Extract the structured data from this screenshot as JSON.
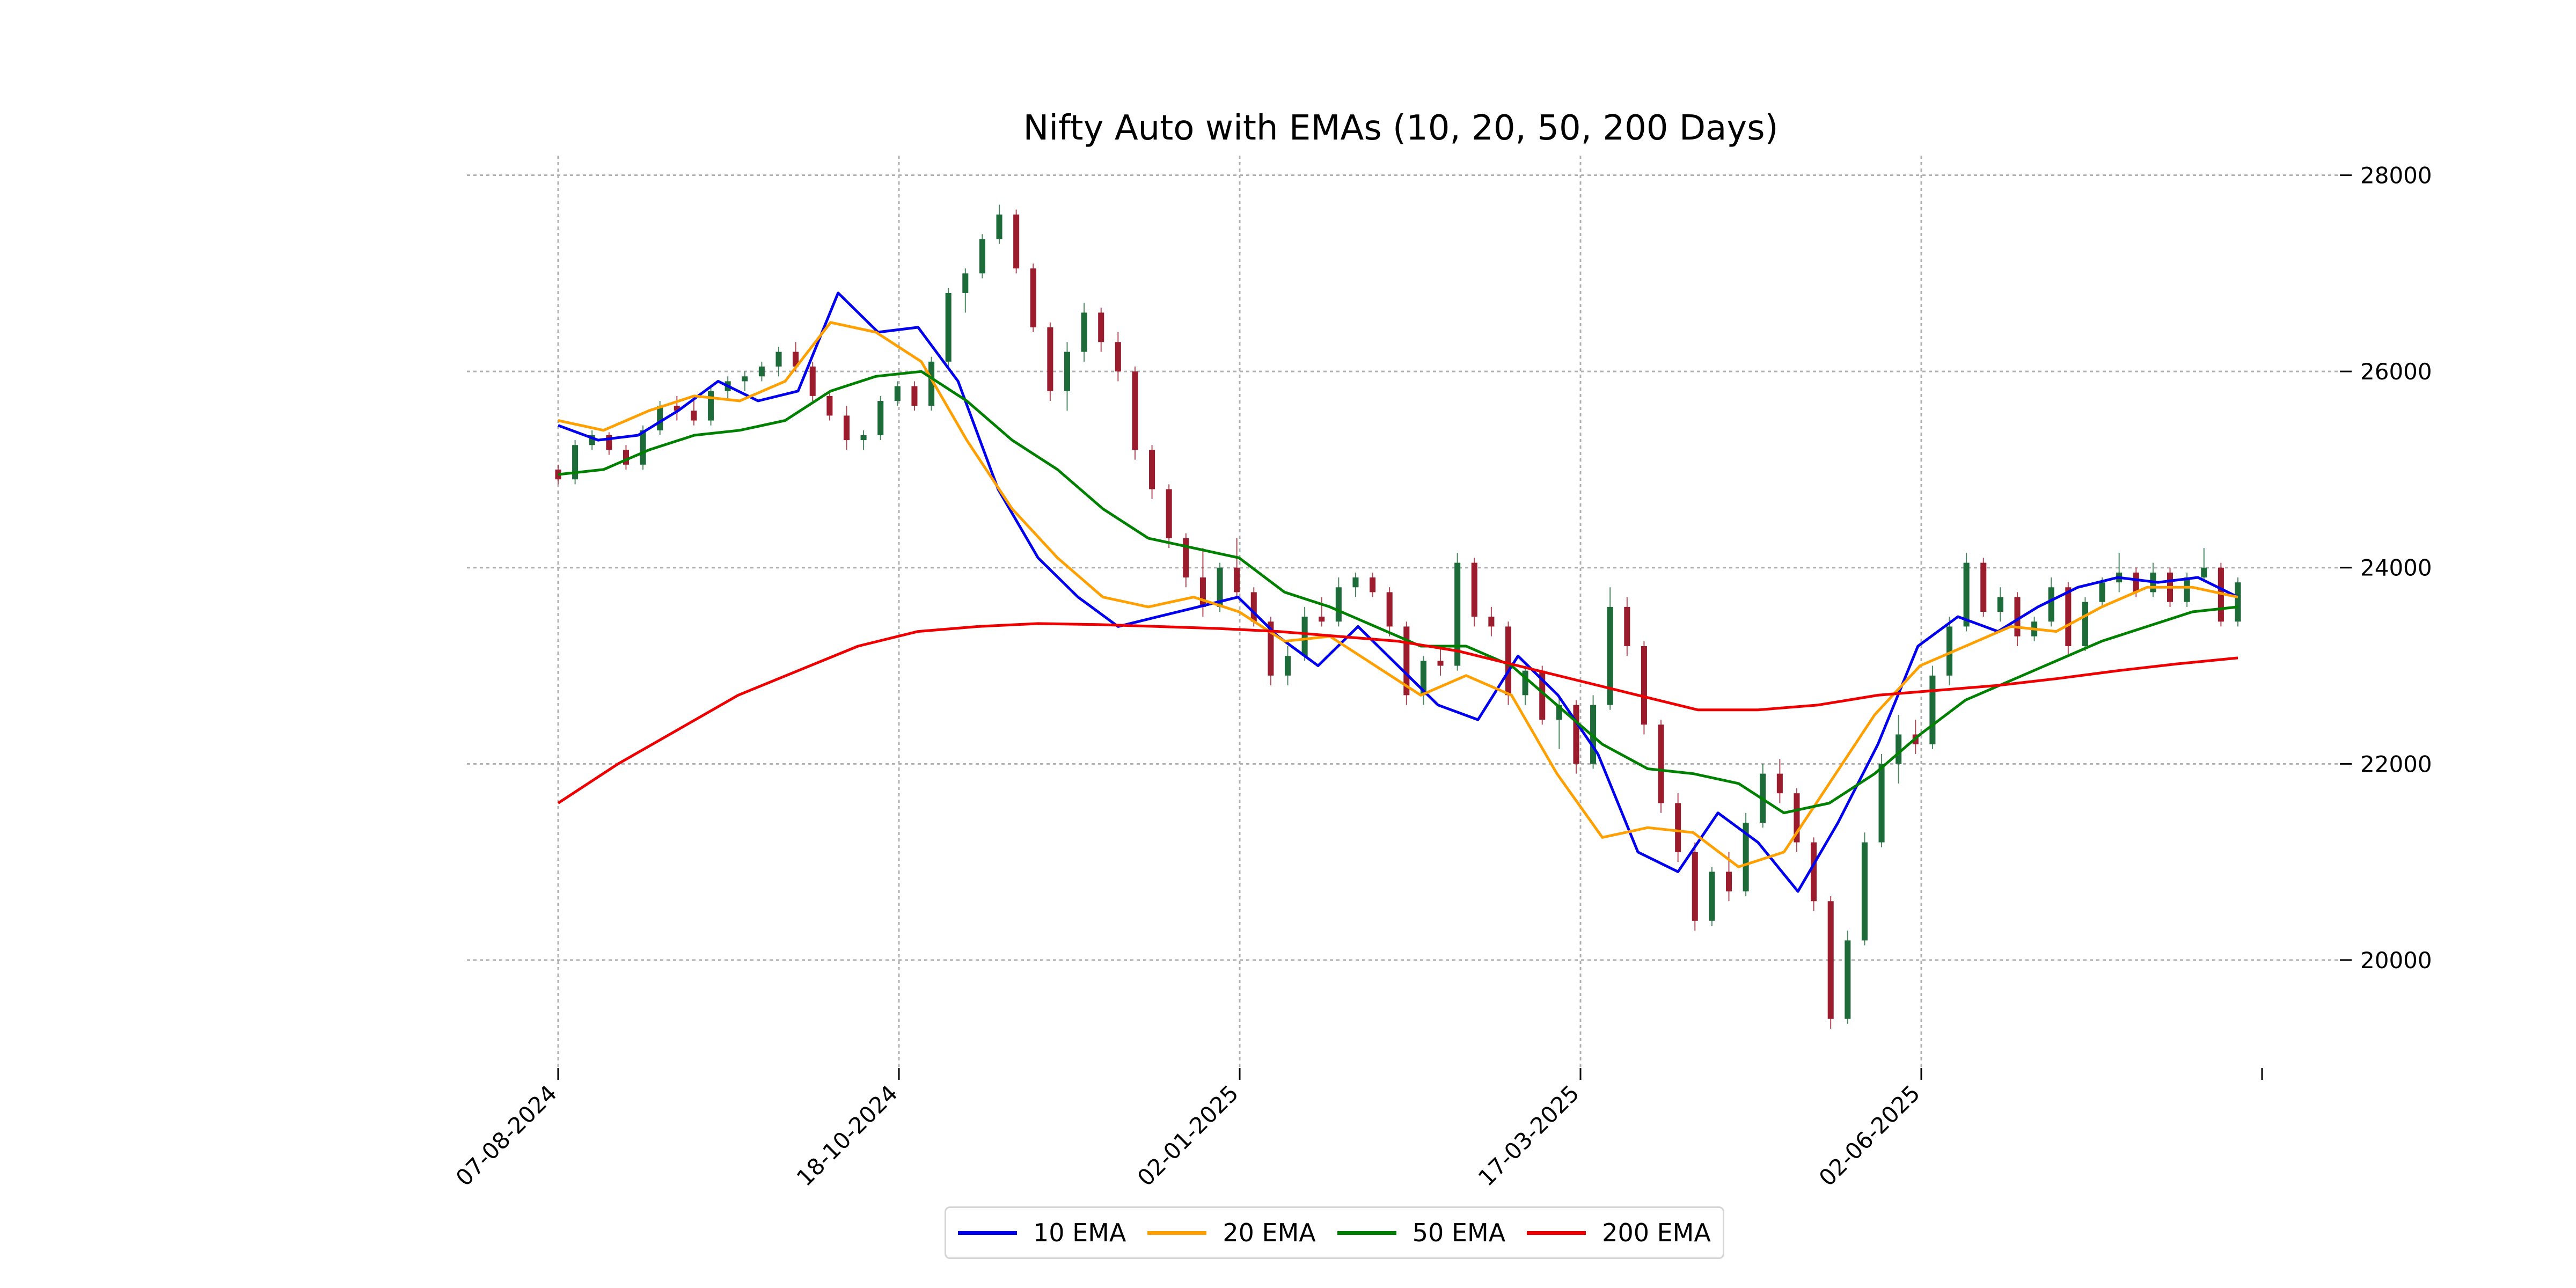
{
  "chart_data": {
    "type": "line",
    "title": "Nifty Auto with EMAs (10, 20, 50, 200 Days)",
    "xlabel": "",
    "ylabel": "",
    "x_tick_labels": [
      "07-08-2024",
      "18-10-2024",
      "02-01-2025",
      "17-03-2025",
      "02-06-2025",
      ""
    ],
    "y_ticks": [
      20000,
      22000,
      24000,
      26000,
      28000
    ],
    "y_tick_labels": [
      "20000",
      "22000",
      "24000",
      "26000",
      "28000"
    ],
    "ylim": [
      18900,
      28200
    ],
    "y_axis_side": "right",
    "grid": true,
    "legend": {
      "position": "bottom-center"
    },
    "candles": {
      "description_free": true,
      "up_color": "#1e6b3a",
      "down_color": "#9b1c2c",
      "ohlc": [
        [
          25000,
          25050,
          24850,
          24900
        ],
        [
          24900,
          25300,
          24850,
          25250
        ],
        [
          25250,
          25400,
          25200,
          25350
        ],
        [
          25350,
          25380,
          25150,
          25200
        ],
        [
          25200,
          25250,
          25000,
          25050
        ],
        [
          25050,
          25450,
          25000,
          25400
        ],
        [
          25400,
          25700,
          25350,
          25650
        ],
        [
          25650,
          25750,
          25500,
          25600
        ],
        [
          25600,
          25720,
          25450,
          25500
        ],
        [
          25500,
          25850,
          25450,
          25800
        ],
        [
          25800,
          25950,
          25700,
          25900
        ],
        [
          25900,
          26000,
          25800,
          25950
        ],
        [
          25950,
          26100,
          25900,
          26050
        ],
        [
          26050,
          26250,
          25950,
          26200
        ],
        [
          26200,
          26300,
          26000,
          26050
        ],
        [
          26050,
          26100,
          25700,
          25750
        ],
        [
          25750,
          25800,
          25500,
          25550
        ],
        [
          25550,
          25650,
          25200,
          25300
        ],
        [
          25300,
          25400,
          25200,
          25350
        ],
        [
          25350,
          25750,
          25300,
          25700
        ],
        [
          25700,
          25900,
          25650,
          25850
        ],
        [
          25850,
          25900,
          25600,
          25650
        ],
        [
          25650,
          26150,
          25600,
          26100
        ],
        [
          26100,
          26850,
          26050,
          26800
        ],
        [
          26800,
          27050,
          26600,
          27000
        ],
        [
          27000,
          27400,
          26950,
          27350
        ],
        [
          27350,
          27700,
          27300,
          27600
        ],
        [
          27600,
          27650,
          27000,
          27050
        ],
        [
          27050,
          27100,
          26400,
          26450
        ],
        [
          26450,
          26500,
          25700,
          25800
        ],
        [
          25800,
          26300,
          25600,
          26200
        ],
        [
          26200,
          26700,
          26100,
          26600
        ],
        [
          26600,
          26650,
          26200,
          26300
        ],
        [
          26300,
          26400,
          25900,
          26000
        ],
        [
          26000,
          26050,
          25100,
          25200
        ],
        [
          25200,
          25250,
          24700,
          24800
        ],
        [
          24800,
          24850,
          24200,
          24300
        ],
        [
          24300,
          24350,
          23800,
          23900
        ],
        [
          23900,
          24200,
          23500,
          23600
        ],
        [
          23600,
          24050,
          23550,
          24000
        ],
        [
          24000,
          24300,
          23700,
          23750
        ],
        [
          23750,
          23800,
          23400,
          23450
        ],
        [
          23450,
          23500,
          22800,
          22900
        ],
        [
          22900,
          23200,
          22800,
          23100
        ],
        [
          23100,
          23600,
          23050,
          23500
        ],
        [
          23500,
          23700,
          23400,
          23450
        ],
        [
          23450,
          23900,
          23400,
          23800
        ],
        [
          23800,
          23950,
          23700,
          23900
        ],
        [
          23900,
          23950,
          23700,
          23750
        ],
        [
          23750,
          23800,
          23300,
          23400
        ],
        [
          23400,
          23450,
          22600,
          22700
        ],
        [
          22700,
          23100,
          22600,
          23050
        ],
        [
          23050,
          23200,
          22900,
          23000
        ],
        [
          23000,
          24150,
          22950,
          24050
        ],
        [
          24050,
          24100,
          23400,
          23500
        ],
        [
          23500,
          23600,
          23300,
          23400
        ],
        [
          23400,
          23450,
          22600,
          22700
        ],
        [
          22700,
          23000,
          22600,
          22950
        ],
        [
          22950,
          23000,
          22400,
          22450
        ],
        [
          22450,
          22700,
          22150,
          22600
        ],
        [
          22600,
          22650,
          21900,
          22000
        ],
        [
          22000,
          22700,
          21950,
          22600
        ],
        [
          22600,
          23800,
          22550,
          23600
        ],
        [
          23600,
          23700,
          23100,
          23200
        ],
        [
          23200,
          23250,
          22300,
          22400
        ],
        [
          22400,
          22450,
          21500,
          21600
        ],
        [
          21600,
          21700,
          21000,
          21100
        ],
        [
          21100,
          21200,
          20300,
          20400
        ],
        [
          20400,
          20950,
          20350,
          20900
        ],
        [
          20900,
          21100,
          20600,
          20700
        ],
        [
          20700,
          21500,
          20650,
          21400
        ],
        [
          21400,
          22000,
          21350,
          21900
        ],
        [
          21900,
          22050,
          21600,
          21700
        ],
        [
          21700,
          21750,
          21100,
          21200
        ],
        [
          21200,
          21250,
          20500,
          20600
        ],
        [
          20600,
          20650,
          19300,
          19400
        ],
        [
          19400,
          20300,
          19350,
          20200
        ],
        [
          20200,
          21300,
          20150,
          21200
        ],
        [
          21200,
          22100,
          21150,
          22000
        ],
        [
          22000,
          22500,
          21800,
          22300
        ],
        [
          22300,
          22450,
          22100,
          22200
        ],
        [
          22200,
          23000,
          22150,
          22900
        ],
        [
          22900,
          23500,
          22800,
          23400
        ],
        [
          23400,
          24150,
          23350,
          24050
        ],
        [
          24050,
          24100,
          23500,
          23550
        ],
        [
          23550,
          23800,
          23450,
          23700
        ],
        [
          23700,
          23750,
          23200,
          23300
        ],
        [
          23300,
          23500,
          23250,
          23450
        ],
        [
          23450,
          23900,
          23400,
          23800
        ],
        [
          23800,
          23850,
          23100,
          23200
        ],
        [
          23200,
          23700,
          23150,
          23650
        ],
        [
          23650,
          23900,
          23600,
          23850
        ],
        [
          23850,
          24150,
          23750,
          23950
        ],
        [
          23950,
          24000,
          23700,
          23750
        ],
        [
          23750,
          24050,
          23700,
          23950
        ],
        [
          23950,
          24000,
          23600,
          23650
        ],
        [
          23650,
          23950,
          23600,
          23900
        ],
        [
          23900,
          24200,
          23850,
          24000
        ],
        [
          24000,
          24050,
          23400,
          23450
        ],
        [
          23450,
          23900,
          23400,
          23850
        ]
      ]
    },
    "series": [
      {
        "name": "10 EMA",
        "color": "#0000ee",
        "values": [
          25450,
          25300,
          25350,
          25600,
          25900,
          25700,
          25800,
          26800,
          26400,
          26450,
          25900,
          24800,
          24100,
          23700,
          23400,
          23500,
          23600,
          23700,
          23300,
          23000,
          23400,
          23000,
          22600,
          22450,
          23100,
          22700,
          22100,
          21100,
          20900,
          21500,
          21200,
          20700,
          21400,
          22200,
          23200,
          23500,
          23350,
          23600,
          23800,
          23900,
          23850,
          23900,
          23700
        ]
      },
      {
        "name": "20 EMA",
        "color": "#ff9f00",
        "values": [
          25500,
          25400,
          25600,
          25750,
          25700,
          25900,
          26500,
          26400,
          26100,
          25300,
          24600,
          24100,
          23700,
          23600,
          23700,
          23550,
          23250,
          23300,
          23000,
          22700,
          22900,
          22700,
          21900,
          21250,
          21350,
          21300,
          20950,
          21100,
          21800,
          22500,
          23000,
          23200,
          23400,
          23350,
          23600,
          23800,
          23800,
          23700
        ]
      },
      {
        "name": "50 EMA",
        "color": "#008000",
        "values": [
          24950,
          25000,
          25200,
          25350,
          25400,
          25500,
          25800,
          25950,
          26000,
          25700,
          25300,
          25000,
          24600,
          24300,
          24200,
          24100,
          23750,
          23600,
          23400,
          23200,
          23200,
          23000,
          22600,
          22200,
          21950,
          21900,
          21800,
          21500,
          21600,
          21900,
          22300,
          22650,
          22850,
          23050,
          23250,
          23400,
          23550,
          23600
        ]
      },
      {
        "name": "200 EMA",
        "color": "#ee0000",
        "values": [
          21600,
          22000,
          22350,
          22700,
          22950,
          23200,
          23350,
          23400,
          23430,
          23420,
          23400,
          23380,
          23350,
          23300,
          23250,
          23150,
          23000,
          22850,
          22700,
          22550,
          22550,
          22600,
          22700,
          22750,
          22800,
          22870,
          22950,
          23020,
          23080
        ]
      }
    ]
  }
}
